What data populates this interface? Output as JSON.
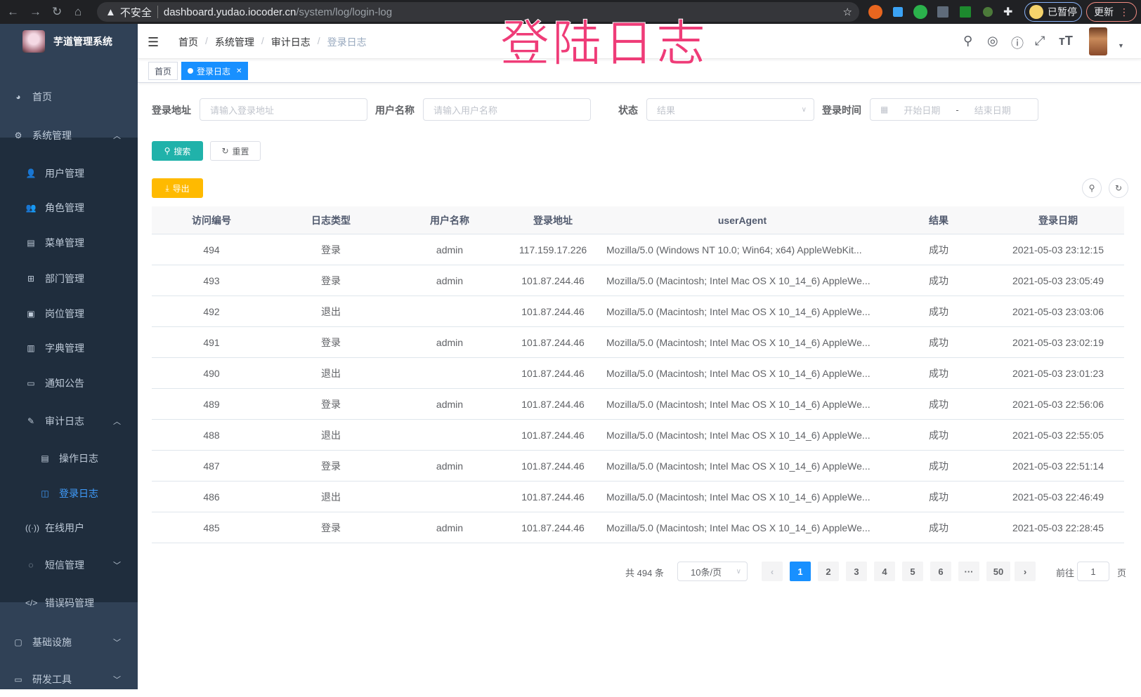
{
  "browser": {
    "insecure": "不安全",
    "url_host": "dashboard.yudao.iocoder.cn",
    "url_path": "/system/log/login-log",
    "paused": "已暂停",
    "update": "更新"
  },
  "overlay_title": "登陆日志",
  "sidebar": {
    "app_name": "芋道管理系统",
    "items": [
      {
        "label": "首页",
        "icon": "dashboard-icon",
        "level": 0
      },
      {
        "label": "系统管理",
        "icon": "gear-icon",
        "level": 0,
        "arrow": "up"
      },
      {
        "label": "用户管理",
        "icon": "user-icon",
        "level": 1
      },
      {
        "label": "角色管理",
        "icon": "peoples-icon",
        "level": 1
      },
      {
        "label": "菜单管理",
        "icon": "tree-table-icon",
        "level": 1
      },
      {
        "label": "部门管理",
        "icon": "tree-icon",
        "level": 1
      },
      {
        "label": "岗位管理",
        "icon": "post-icon",
        "level": 1
      },
      {
        "label": "字典管理",
        "icon": "dict-icon",
        "level": 1
      },
      {
        "label": "通知公告",
        "icon": "message-icon",
        "level": 1
      },
      {
        "label": "审计日志",
        "icon": "log-icon",
        "level": 1,
        "arrow": "up"
      },
      {
        "label": "操作日志",
        "icon": "form-icon",
        "level": 2
      },
      {
        "label": "登录日志",
        "icon": "logininfor-icon",
        "level": 2,
        "active": true
      },
      {
        "label": "在线用户",
        "icon": "online-icon",
        "level": 1
      },
      {
        "label": "短信管理",
        "icon": "validcode-icon",
        "level": 1,
        "arrow": "down"
      },
      {
        "label": "错误码管理",
        "icon": "code-icon",
        "level": 1
      },
      {
        "label": "基础设施",
        "icon": "monitor-icon",
        "level": 0,
        "arrow": "down"
      },
      {
        "label": "研发工具",
        "icon": "tool-icon",
        "level": 0,
        "arrow": "down"
      }
    ]
  },
  "breadcrumb": [
    "首页",
    "系统管理",
    "审计日志",
    "登录日志"
  ],
  "tags": [
    {
      "label": "首页"
    },
    {
      "label": "登录日志",
      "active": true
    }
  ],
  "filters": {
    "login_address": {
      "label": "登录地址",
      "placeholder": "请输入登录地址"
    },
    "username": {
      "label": "用户名称",
      "placeholder": "请输入用户名称"
    },
    "status": {
      "label": "状态",
      "placeholder": "结果"
    },
    "login_time": {
      "label": "登录时间",
      "start": "开始日期",
      "sep": "-",
      "end": "结束日期"
    }
  },
  "buttons": {
    "search": "搜索",
    "reset": "重置",
    "export": "导出"
  },
  "table": {
    "columns": [
      "访问编号",
      "日志类型",
      "用户名称",
      "登录地址",
      "userAgent",
      "结果",
      "登录日期"
    ],
    "rows": [
      [
        "494",
        "登录",
        "admin",
        "117.159.17.226",
        "Mozilla/5.0 (Windows NT 10.0; Win64; x64) AppleWebKit...",
        "成功",
        "2021-05-03 23:12:15"
      ],
      [
        "493",
        "登录",
        "admin",
        "101.87.244.46",
        "Mozilla/5.0 (Macintosh; Intel Mac OS X 10_14_6) AppleWe...",
        "成功",
        "2021-05-03 23:05:49"
      ],
      [
        "492",
        "退出",
        "",
        "101.87.244.46",
        "Mozilla/5.0 (Macintosh; Intel Mac OS X 10_14_6) AppleWe...",
        "成功",
        "2021-05-03 23:03:06"
      ],
      [
        "491",
        "登录",
        "admin",
        "101.87.244.46",
        "Mozilla/5.0 (Macintosh; Intel Mac OS X 10_14_6) AppleWe...",
        "成功",
        "2021-05-03 23:02:19"
      ],
      [
        "490",
        "退出",
        "",
        "101.87.244.46",
        "Mozilla/5.0 (Macintosh; Intel Mac OS X 10_14_6) AppleWe...",
        "成功",
        "2021-05-03 23:01:23"
      ],
      [
        "489",
        "登录",
        "admin",
        "101.87.244.46",
        "Mozilla/5.0 (Macintosh; Intel Mac OS X 10_14_6) AppleWe...",
        "成功",
        "2021-05-03 22:56:06"
      ],
      [
        "488",
        "退出",
        "",
        "101.87.244.46",
        "Mozilla/5.0 (Macintosh; Intel Mac OS X 10_14_6) AppleWe...",
        "成功",
        "2021-05-03 22:55:05"
      ],
      [
        "487",
        "登录",
        "admin",
        "101.87.244.46",
        "Mozilla/5.0 (Macintosh; Intel Mac OS X 10_14_6) AppleWe...",
        "成功",
        "2021-05-03 22:51:14"
      ],
      [
        "486",
        "退出",
        "",
        "101.87.244.46",
        "Mozilla/5.0 (Macintosh; Intel Mac OS X 10_14_6) AppleWe...",
        "成功",
        "2021-05-03 22:46:49"
      ],
      [
        "485",
        "登录",
        "admin",
        "101.87.244.46",
        "Mozilla/5.0 (Macintosh; Intel Mac OS X 10_14_6) AppleWe...",
        "成功",
        "2021-05-03 22:28:45"
      ]
    ]
  },
  "pagination": {
    "total": "共 494 条",
    "page_size": "10条/页",
    "pages": [
      "1",
      "2",
      "3",
      "4",
      "5",
      "6",
      "···",
      "50"
    ],
    "current": "1",
    "goto_label": "前往",
    "goto_value": "1",
    "goto_suffix": "页"
  },
  "colors": {
    "sidebar": "#304156",
    "submenu": "#1f2d3d",
    "primary": "#1890ff",
    "search": "#20b2aa",
    "export": "#ffba00",
    "overlay": "#ef3c78"
  }
}
